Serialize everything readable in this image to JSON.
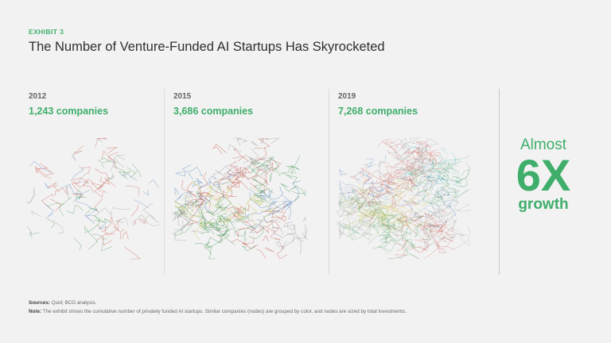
{
  "header": {
    "exhibit": "EXHIBIT 3",
    "title": "The Number of Venture-Funded AI Startups Has Skyrocketed"
  },
  "panels": [
    {
      "year": "2012",
      "companies": "1,243 companies",
      "density": 1243,
      "color_weights": {
        "red": 0.4,
        "green": 0.25,
        "blue": 0.15,
        "gray": 0.2
      }
    },
    {
      "year": "2015",
      "companies": "3,686 companies",
      "density": 3686,
      "color_weights": {
        "red": 0.25,
        "green": 0.3,
        "blue": 0.12,
        "yellow": 0.12,
        "gray": 0.21
      }
    },
    {
      "year": "2019",
      "companies": "7,268 companies",
      "density": 7268,
      "color_weights": {
        "red": 0.28,
        "green": 0.24,
        "blue": 0.1,
        "yellow": 0.12,
        "cyan": 0.06,
        "gray": 0.2
      }
    }
  ],
  "growth": {
    "top": "Almost",
    "big": "6X",
    "bottom": "growth"
  },
  "footnotes": {
    "sources_label": "Sources:",
    "sources_text": " Quid; BCG analysis.",
    "note_label": "Note:",
    "note_text": " The exhibit shows the cumulative number of privately funded AI startups. Similar companies (nodes) are grouped by color, and nodes are sized by total investments."
  },
  "colors": {
    "accent": "#3fae6b",
    "background": "#f2f2f2",
    "cluster_red": "#c0392b",
    "cluster_green": "#2e8b3e",
    "cluster_blue": "#3b72b8",
    "cluster_yellow": "#c9c23a",
    "cluster_cyan": "#2aa8b5",
    "cluster_gray": "#8a8a8a"
  }
}
